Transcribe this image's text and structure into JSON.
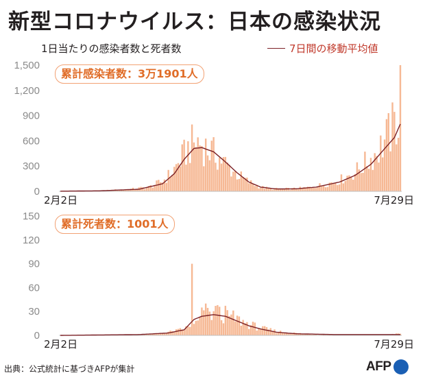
{
  "title": "新型コロナウイルス：日本の感染状況",
  "subtitle": "1日当たりの感染者数と死者数",
  "legend": "7日間の移動平均値",
  "source": "出典：公式統計に基づきAFPが集計",
  "logo": "AFP",
  "colors": {
    "bar": "#f6b894",
    "avg_line": "#7a1f24",
    "callout_border": "#f2a173",
    "callout_text": "#e06d28",
    "axis_text": "#8a8a8a"
  },
  "chart_data": [
    {
      "type": "bar",
      "callout": "累計感染者数：3万1901人",
      "xlabel_start": "2月2日",
      "xlabel_end": "7月29日",
      "ylim": [
        0,
        1500
      ],
      "yticks": [
        "0",
        "300",
        "600",
        "900",
        "1,200",
        "1,500"
      ],
      "keypoints": [
        {
          "day": 0,
          "value": 2
        },
        {
          "day": 20,
          "value": 8
        },
        {
          "day": 35,
          "value": 25
        },
        {
          "day": 45,
          "value": 50
        },
        {
          "day": 52,
          "value": 120
        },
        {
          "day": 57,
          "value": 230
        },
        {
          "day": 62,
          "value": 400
        },
        {
          "day": 66,
          "value": 540
        },
        {
          "day": 70,
          "value": 590
        },
        {
          "day": 74,
          "value": 520
        },
        {
          "day": 78,
          "value": 450
        },
        {
          "day": 84,
          "value": 330
        },
        {
          "day": 90,
          "value": 200
        },
        {
          "day": 96,
          "value": 110
        },
        {
          "day": 102,
          "value": 50
        },
        {
          "day": 108,
          "value": 30
        },
        {
          "day": 118,
          "value": 30
        },
        {
          "day": 126,
          "value": 45
        },
        {
          "day": 134,
          "value": 80
        },
        {
          "day": 142,
          "value": 130
        },
        {
          "day": 150,
          "value": 230
        },
        {
          "day": 158,
          "value": 390
        },
        {
          "day": 164,
          "value": 560
        },
        {
          "day": 170,
          "value": 780
        },
        {
          "day": 172,
          "value": 900
        },
        {
          "day": 173,
          "value": 1500
        }
      ],
      "avg_keypoints": [
        {
          "day": 0,
          "value": 2
        },
        {
          "day": 20,
          "value": 6
        },
        {
          "day": 40,
          "value": 25
        },
        {
          "day": 52,
          "value": 90
        },
        {
          "day": 58,
          "value": 210
        },
        {
          "day": 63,
          "value": 380
        },
        {
          "day": 68,
          "value": 510
        },
        {
          "day": 72,
          "value": 520
        },
        {
          "day": 78,
          "value": 470
        },
        {
          "day": 84,
          "value": 350
        },
        {
          "day": 90,
          "value": 220
        },
        {
          "day": 96,
          "value": 110
        },
        {
          "day": 102,
          "value": 50
        },
        {
          "day": 110,
          "value": 28
        },
        {
          "day": 120,
          "value": 30
        },
        {
          "day": 130,
          "value": 50
        },
        {
          "day": 142,
          "value": 110
        },
        {
          "day": 150,
          "value": 190
        },
        {
          "day": 158,
          "value": 320
        },
        {
          "day": 164,
          "value": 480
        },
        {
          "day": 170,
          "value": 640
        },
        {
          "day": 173,
          "value": 800
        }
      ]
    },
    {
      "type": "bar",
      "callout": "累計死者数：1001人",
      "xlabel_start": "2月2日",
      "xlabel_end": "7月29日",
      "ylim": [
        0,
        150
      ],
      "yticks": [
        "0",
        "30",
        "60",
        "90",
        "120",
        "150"
      ],
      "keypoints": [
        {
          "day": 0,
          "value": 0
        },
        {
          "day": 30,
          "value": 0
        },
        {
          "day": 50,
          "value": 2
        },
        {
          "day": 60,
          "value": 6
        },
        {
          "day": 68,
          "value": 12
        },
        {
          "day": 72,
          "value": 22
        },
        {
          "day": 78,
          "value": 28
        },
        {
          "day": 84,
          "value": 26
        },
        {
          "day": 90,
          "value": 20
        },
        {
          "day": 96,
          "value": 14
        },
        {
          "day": 102,
          "value": 9
        },
        {
          "day": 110,
          "value": 5
        },
        {
          "day": 118,
          "value": 3
        },
        {
          "day": 130,
          "value": 1
        },
        {
          "day": 150,
          "value": 1
        },
        {
          "day": 165,
          "value": 1
        },
        {
          "day": 173,
          "value": 2
        }
      ],
      "spikes": [
        {
          "day": 67,
          "value": 90
        },
        {
          "day": 72,
          "value": 35
        },
        {
          "day": 74,
          "value": 40
        },
        {
          "day": 80,
          "value": 38
        }
      ],
      "avg_keypoints": [
        {
          "day": 0,
          "value": 0
        },
        {
          "day": 40,
          "value": 1
        },
        {
          "day": 55,
          "value": 3
        },
        {
          "day": 63,
          "value": 7
        },
        {
          "day": 68,
          "value": 20
        },
        {
          "day": 72,
          "value": 24
        },
        {
          "day": 78,
          "value": 26
        },
        {
          "day": 84,
          "value": 24
        },
        {
          "day": 90,
          "value": 18
        },
        {
          "day": 96,
          "value": 12
        },
        {
          "day": 102,
          "value": 8
        },
        {
          "day": 110,
          "value": 4
        },
        {
          "day": 120,
          "value": 2
        },
        {
          "day": 140,
          "value": 1
        },
        {
          "day": 173,
          "value": 1
        }
      ]
    }
  ]
}
